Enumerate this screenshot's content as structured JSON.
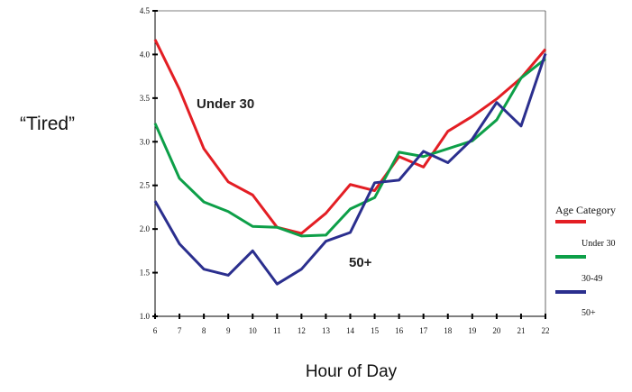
{
  "chart_data": {
    "type": "line",
    "title": "",
    "ylabel": "“Tired”",
    "xlabel": "Hour of Day",
    "x": [
      6,
      7,
      8,
      9,
      10,
      11,
      12,
      13,
      14,
      15,
      16,
      17,
      18,
      19,
      20,
      21,
      22
    ],
    "xlim": [
      6,
      22
    ],
    "ylim": [
      1.0,
      4.5
    ],
    "yticks": [
      "1.0",
      "1.5",
      "2.0",
      "2.5",
      "3.0",
      "3.5",
      "4.0",
      "4.5"
    ],
    "grid": false,
    "legend": {
      "title": "Age Category",
      "placement": "right",
      "entries": [
        "Under 30",
        "30-49",
        "50+"
      ]
    },
    "annotations": [
      "Under 30",
      "50+"
    ],
    "series": [
      {
        "name": "Under 30",
        "color": "#e31e24",
        "values": [
          4.17,
          3.6,
          2.92,
          2.54,
          2.39,
          2.02,
          1.95,
          2.18,
          2.51,
          2.44,
          2.83,
          2.71,
          3.12,
          3.29,
          3.49,
          3.73,
          4.06
        ]
      },
      {
        "name": "30-49",
        "color": "#0d9f48",
        "values": [
          3.21,
          2.58,
          2.31,
          2.2,
          2.03,
          2.02,
          1.92,
          1.93,
          2.23,
          2.36,
          2.88,
          2.83,
          2.92,
          3.01,
          3.25,
          3.73,
          3.95
        ]
      },
      {
        "name": "50+",
        "color": "#2b2f8e",
        "values": [
          2.32,
          1.83,
          1.54,
          1.47,
          1.75,
          1.37,
          1.54,
          1.86,
          1.96,
          2.53,
          2.56,
          2.89,
          2.76,
          3.03,
          3.45,
          3.18,
          4.01
        ]
      }
    ]
  }
}
